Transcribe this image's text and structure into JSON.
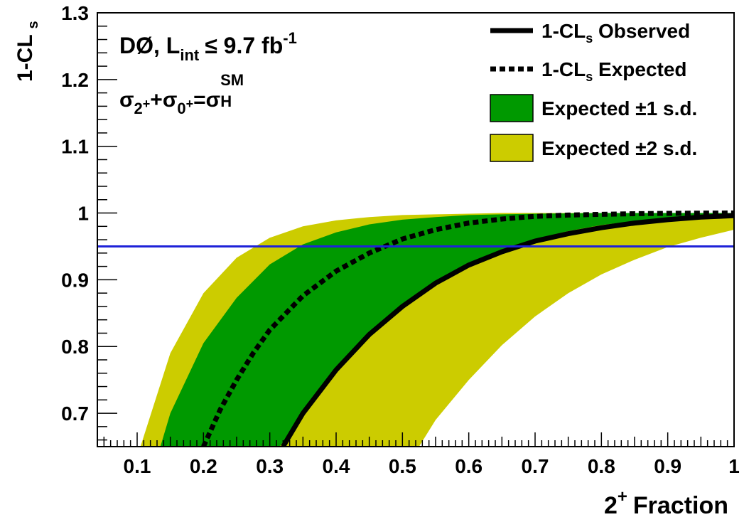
{
  "chart_data": {
    "type": "line",
    "xlabel": "Fraction",
    "xlabel_superscript_prefix": "2+",
    "ylabel": "1-CLs",
    "xlim": [
      0.04,
      1.0
    ],
    "ylim": [
      0.65,
      1.3
    ],
    "x_ticks": [
      0.1,
      0.2,
      0.3,
      0.4,
      0.5,
      0.6,
      0.7,
      0.8,
      0.9,
      1
    ],
    "x_tick_labels": [
      "0.1",
      "0.2",
      "0.3",
      "0.4",
      "0.5",
      "0.6",
      "0.7",
      "0.8",
      "0.9",
      "1"
    ],
    "y_ticks": [
      0.7,
      0.8,
      0.9,
      1.0,
      1.1,
      1.2,
      1.3
    ],
    "y_tick_labels": [
      "0.7",
      "0.8",
      "0.9",
      "1",
      "1.1",
      "1.2",
      "1.3"
    ],
    "grid": false,
    "legend_position": "top-right",
    "annotations": {
      "experiment": "DØ, L",
      "experiment_sub": "int",
      "lumi": "≤ 9.7 fb",
      "lumi_sup": "-1",
      "xsec_formula": "σ2++σ0+=σH SM"
    },
    "reference_line": {
      "y": 0.95,
      "color": "#1e22d8"
    },
    "colors": {
      "observed": "#000000",
      "expected": "#000000",
      "band_1sd": "#009900",
      "band_2sd": "#cccc00"
    },
    "x": [
      0.1,
      0.15,
      0.2,
      0.25,
      0.3,
      0.35,
      0.4,
      0.45,
      0.5,
      0.55,
      0.6,
      0.65,
      0.7,
      0.75,
      0.8,
      0.85,
      0.9,
      0.95,
      1.0
    ],
    "series": [
      {
        "name": "1-CLs Observed",
        "style": "solid",
        "x": [
          0.32,
          0.35,
          0.4,
          0.45,
          0.5,
          0.55,
          0.6,
          0.65,
          0.7,
          0.75,
          0.8,
          0.85,
          0.9,
          0.95,
          1.0
        ],
        "values": [
          0.65,
          0.7,
          0.765,
          0.818,
          0.86,
          0.895,
          0.922,
          0.942,
          0.958,
          0.969,
          0.978,
          0.985,
          0.99,
          0.994,
          0.996
        ]
      },
      {
        "name": "1-CLs Expected",
        "style": "dotted",
        "x": [
          0.2,
          0.225,
          0.25,
          0.275,
          0.3,
          0.35,
          0.4,
          0.45,
          0.5,
          0.55,
          0.6,
          0.65,
          0.7,
          0.75,
          0.8,
          0.85,
          0.9,
          0.95,
          1.0
        ],
        "values": [
          0.65,
          0.705,
          0.75,
          0.79,
          0.825,
          0.876,
          0.913,
          0.94,
          0.961,
          0.975,
          0.985,
          0.991,
          0.995,
          0.997,
          0.998,
          0.999,
          0.9995,
          0.9998,
          1.0
        ]
      },
      {
        "name": "Expected ±1 s.d.",
        "type": "band",
        "lower_x": [
          0.315,
          0.35,
          0.4,
          0.45,
          0.5,
          0.55,
          0.6,
          0.65,
          0.7,
          0.75,
          0.8,
          0.85,
          0.9,
          0.95,
          1.0
        ],
        "lower": [
          0.65,
          0.7,
          0.768,
          0.82,
          0.862,
          0.896,
          0.924,
          0.945,
          0.961,
          0.973,
          0.982,
          0.988,
          0.993,
          0.996,
          0.998
        ],
        "upper_x": [
          0.135,
          0.15,
          0.2,
          0.25,
          0.3,
          0.35,
          0.4,
          0.45,
          0.5,
          0.55,
          0.6,
          0.65,
          0.7,
          0.75,
          0.8,
          0.85,
          0.9,
          0.95,
          1.0
        ],
        "upper": [
          0.65,
          0.7,
          0.805,
          0.873,
          0.923,
          0.953,
          0.971,
          0.983,
          0.99,
          0.994,
          0.997,
          0.998,
          0.999,
          0.9995,
          1.0,
          1.0,
          1.0,
          1.0,
          1.0
        ]
      },
      {
        "name": "Expected ±2 s.d.",
        "type": "band",
        "lower_x": [
          0.525,
          0.55,
          0.6,
          0.65,
          0.7,
          0.75,
          0.8,
          0.85,
          0.9,
          0.95,
          1.0
        ],
        "lower": [
          0.65,
          0.69,
          0.75,
          0.802,
          0.845,
          0.88,
          0.908,
          0.93,
          0.949,
          0.963,
          0.975
        ],
        "upper_x": [
          0.105,
          0.15,
          0.2,
          0.25,
          0.3,
          0.35,
          0.4,
          0.45,
          0.5,
          0.55,
          0.6,
          0.65,
          0.7,
          0.75,
          0.8,
          0.85,
          0.9,
          0.95,
          1.0
        ],
        "upper": [
          0.65,
          0.79,
          0.88,
          0.933,
          0.963,
          0.98,
          0.989,
          0.994,
          0.997,
          0.998,
          0.999,
          1.0,
          1.0,
          1.0,
          1.0,
          1.0,
          1.0,
          1.0,
          1.0
        ]
      }
    ]
  }
}
